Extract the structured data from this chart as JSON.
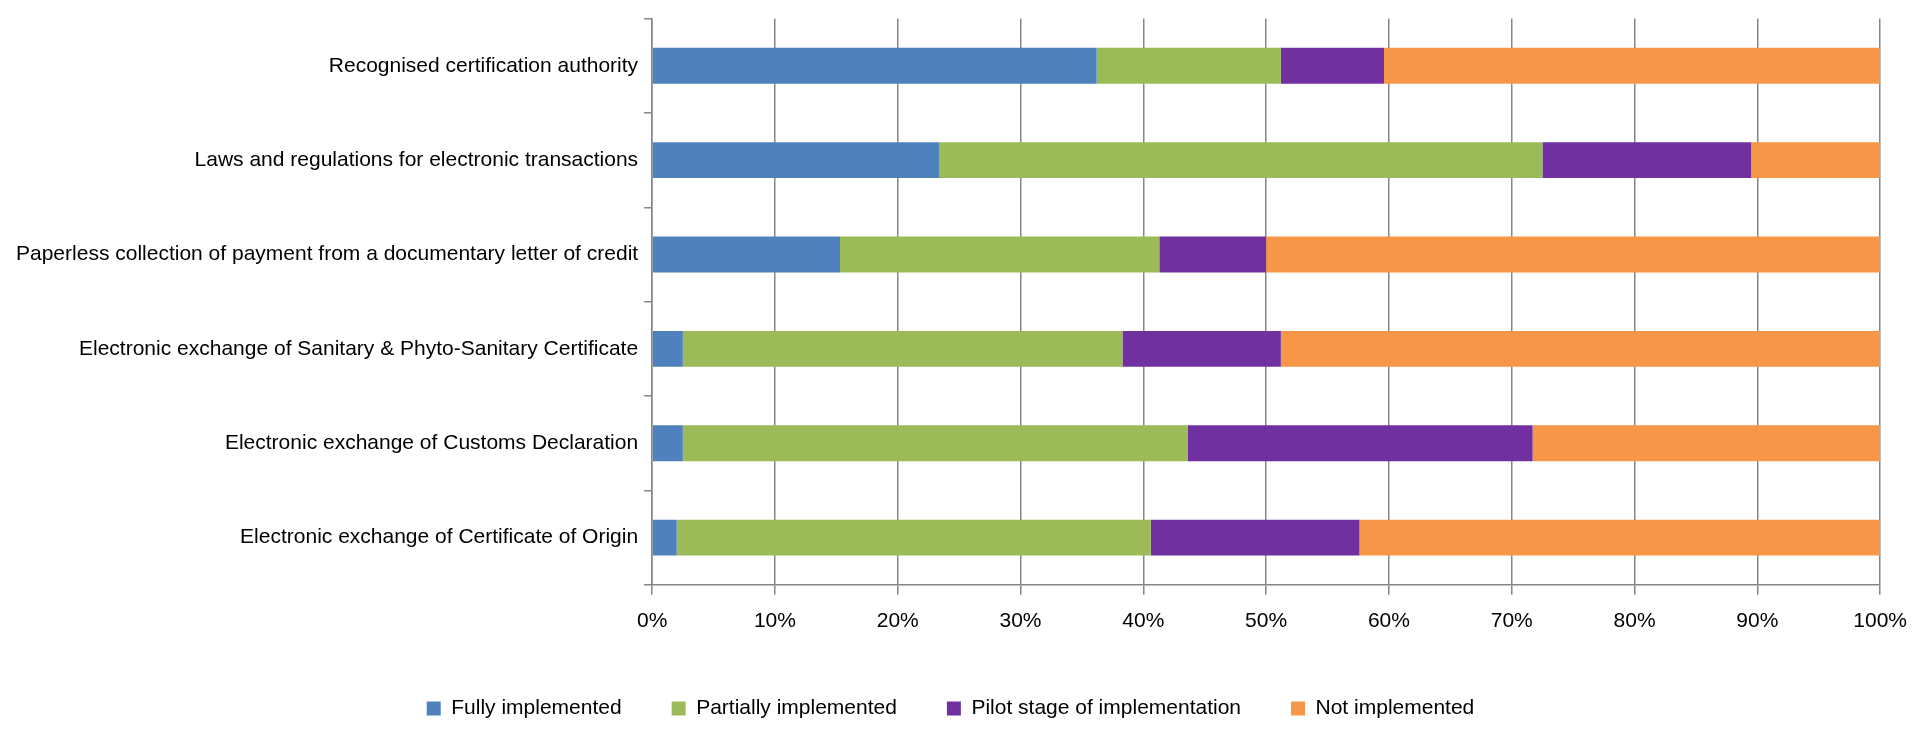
{
  "chart_data": {
    "type": "bar",
    "orientation": "horizontal",
    "stacked": true,
    "categories": [
      "Recognised certification authority",
      "Laws and regulations for electronic transactions",
      "Paperless collection of payment from a documentary letter of credit",
      "Electronic exchange of Sanitary & Phyto-Sanitary Certificate",
      "Electronic exchange of Customs Declaration",
      "Electronic exchange of Certificate of Origin"
    ],
    "series": [
      {
        "name": "Fully implemented",
        "color": "#4f81bd",
        "values": [
          36.2,
          23.4,
          15.3,
          2.5,
          2.5,
          2.0
        ]
      },
      {
        "name": "Partially implemented",
        "color": "#9bbb59",
        "values": [
          15.0,
          49.1,
          26.0,
          35.8,
          41.1,
          38.6
        ]
      },
      {
        "name": "Pilot stage of implementation",
        "color": "#7030a0",
        "values": [
          8.4,
          17.0,
          8.7,
          12.9,
          28.1,
          17.0
        ]
      },
      {
        "name": "Not implemented",
        "color": "#f79646",
        "values": [
          40.4,
          10.5,
          50.0,
          48.8,
          28.3,
          42.4
        ]
      }
    ],
    "xlim": [
      0,
      100
    ],
    "xticks": [
      {
        "value": 0,
        "label": "0%"
      },
      {
        "value": 10,
        "label": "10%"
      },
      {
        "value": 20,
        "label": "20%"
      },
      {
        "value": 30,
        "label": "30%"
      },
      {
        "value": 40,
        "label": "40%"
      },
      {
        "value": 50,
        "label": "50%"
      },
      {
        "value": 60,
        "label": "60%"
      },
      {
        "value": 70,
        "label": "70%"
      },
      {
        "value": 80,
        "label": "80%"
      },
      {
        "value": 90,
        "label": "90%"
      },
      {
        "value": 100,
        "label": "100%"
      }
    ],
    "grid": "x",
    "legend": "bottom"
  }
}
